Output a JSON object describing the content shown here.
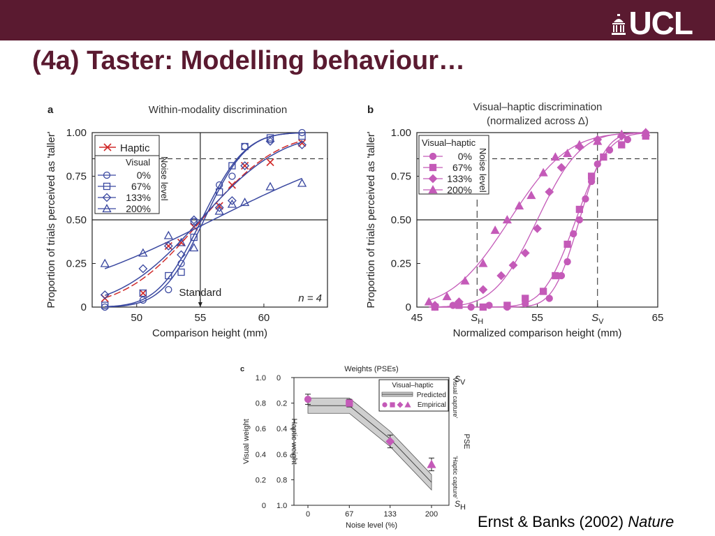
{
  "header": {
    "logo_text": "UCL",
    "title": "(4a) Taster: Modelling behaviour…",
    "bar_color": "#5a1a30"
  },
  "citation": {
    "authors": "Ernst & Banks (2002)",
    "journal": "Nature"
  },
  "chart_data": [
    {
      "panel": "a",
      "type": "line",
      "title": "Within-modality discrimination",
      "xlabel": "Comparison height (mm)",
      "ylabel": "Proportion of trials perceived as 'taller'",
      "xlim": [
        46.5,
        65
      ],
      "ylim": [
        0,
        1
      ],
      "xticks": [
        50,
        55,
        60
      ],
      "yticks": [
        "0",
        "0.25",
        "0.50",
        "0.75",
        "1.00"
      ],
      "annotations": [
        "Standard",
        "n = 4"
      ],
      "standard": 55,
      "legend": {
        "haptic": "Haptic",
        "visual_header": "Visual",
        "noise_label": "Noise level",
        "placement": "top-left"
      },
      "series": [
        {
          "name": "Haptic",
          "marker": "x",
          "color": "#d02a2a",
          "x": [
            47.5,
            50.5,
            52.5,
            53.5,
            54.5,
            56.5,
            57.5,
            58.5,
            60.5,
            63
          ],
          "y": [
            0.05,
            0.08,
            0.35,
            0.37,
            0.46,
            0.58,
            0.7,
            0.81,
            0.83,
            0.94
          ]
        },
        {
          "name": "0%",
          "marker": "circle",
          "color": "#3a48a0",
          "x": [
            47.5,
            50.5,
            52.5,
            53.5,
            54.5,
            56.5,
            57.5,
            58.5,
            60.5,
            63
          ],
          "y": [
            0.0,
            0.04,
            0.1,
            0.25,
            0.49,
            0.7,
            0.75,
            0.92,
            0.96,
            1.0
          ]
        },
        {
          "name": "67%",
          "marker": "square",
          "color": "#3a48a0",
          "x": [
            47.5,
            50.5,
            52.5,
            53.5,
            54.5,
            56.5,
            57.5,
            58.5,
            60.5,
            63
          ],
          "y": [
            0.01,
            0.08,
            0.18,
            0.2,
            0.4,
            0.66,
            0.81,
            0.92,
            0.97,
            0.98
          ]
        },
        {
          "name": "133%",
          "marker": "diamond",
          "color": "#3a48a0",
          "x": [
            47.5,
            50.5,
            52.5,
            53.5,
            54.5,
            56.5,
            57.5,
            58.5,
            60.5,
            63
          ],
          "y": [
            0.07,
            0.22,
            0.35,
            0.3,
            0.5,
            0.57,
            0.61,
            0.81,
            0.95,
            0.93
          ]
        },
        {
          "name": "200%",
          "marker": "triangle",
          "color": "#3a48a0",
          "x": [
            47.5,
            50.5,
            52.5,
            53.5,
            54.5,
            56.5,
            57.5,
            58.5,
            60.5,
            63
          ],
          "y": [
            0.25,
            0.31,
            0.41,
            0.37,
            0.34,
            0.55,
            0.59,
            0.6,
            0.69,
            0.71
          ]
        }
      ]
    },
    {
      "panel": "b",
      "type": "scatter",
      "title": "Visual–haptic discrimination",
      "subtitle": "(normalized across Δ)",
      "xlabel": "Normalized comparison height (mm)",
      "ylabel": "Proportion of trials perceived as 'taller'",
      "xlim": [
        45,
        65
      ],
      "ylim": [
        0,
        1
      ],
      "xticks": [
        "45",
        "S_H",
        "55",
        "S_V",
        "65"
      ],
      "yticks": [
        "0",
        "0.25",
        "0.50",
        "0.75",
        "1.00"
      ],
      "legend": {
        "header": "Visual–haptic",
        "noise_label": "Noise level",
        "placement": "top-left"
      },
      "color": "#c45ab8",
      "series": [
        {
          "name": "0%",
          "marker": "circle",
          "x": [
            46.5,
            48,
            49.5,
            51,
            52.5,
            54,
            56,
            57,
            57.5,
            58,
            58.5,
            59,
            59.5,
            60,
            61,
            62.5,
            64
          ],
          "y": [
            0.0,
            0.01,
            0.0,
            0.01,
            0.0,
            0.02,
            0.05,
            0.18,
            0.26,
            0.42,
            0.5,
            0.62,
            0.72,
            0.82,
            0.9,
            0.96,
            0.99
          ]
        },
        {
          "name": "67%",
          "marker": "square",
          "x": [
            46.5,
            48.5,
            50.5,
            52.5,
            54,
            55.5,
            56.5,
            57.5,
            58.5,
            59.5,
            60.5,
            62,
            64
          ],
          "y": [
            0.0,
            0.01,
            0.0,
            0.01,
            0.05,
            0.09,
            0.18,
            0.36,
            0.56,
            0.75,
            0.86,
            0.93,
            0.98
          ]
        },
        {
          "name": "133%",
          "marker": "diamond",
          "x": [
            46.5,
            48.5,
            50.5,
            52,
            53,
            54,
            55,
            56,
            57,
            58.5,
            60,
            62,
            64
          ],
          "y": [
            0.01,
            0.03,
            0.1,
            0.18,
            0.24,
            0.31,
            0.45,
            0.66,
            0.8,
            0.92,
            0.96,
            0.98,
            1.0
          ]
        },
        {
          "name": "200%",
          "marker": "triangle",
          "x": [
            46,
            47.5,
            49,
            50.5,
            51.5,
            52.5,
            53.5,
            54.5,
            55.5,
            56.5,
            57.5,
            58.5,
            60,
            62,
            64
          ],
          "y": [
            0.03,
            0.06,
            0.15,
            0.25,
            0.44,
            0.5,
            0.58,
            0.64,
            0.77,
            0.86,
            0.88,
            0.93,
            0.95,
            0.99,
            1.0
          ]
        }
      ]
    },
    {
      "panel": "c",
      "type": "line",
      "title": "Weights (PSEs)",
      "xlabel": "Noise level (%)",
      "ylabel_left": "Visual weight",
      "ylabel_inner": "Haptic weight",
      "ylabel_right": "PSE",
      "right_annotations": [
        "'Visual capture'",
        "'Haptic capture'"
      ],
      "right_ticks": [
        "S_V",
        "S_H"
      ],
      "xticks": [
        "0",
        "67",
        "133",
        "200"
      ],
      "yticks_visual": [
        "0",
        "0.2",
        "0.4",
        "0.6",
        "0.8",
        "1.0"
      ],
      "yticks_haptic": [
        "1.0",
        "0.8",
        "0.6",
        "0.4",
        "0.2",
        "0"
      ],
      "legend": {
        "header": "Visual–haptic",
        "predicted": "Predicted",
        "empirical": "Empirical",
        "placement": "top-right"
      },
      "ylim": [
        0,
        1
      ],
      "predicted": {
        "x": [
          0,
          67,
          133,
          200
        ],
        "y": [
          0.78,
          0.78,
          0.52,
          0.18
        ],
        "band": 0.06
      },
      "empirical": {
        "x": [
          0,
          67,
          133,
          200
        ],
        "y": [
          0.83,
          0.8,
          0.5,
          0.32
        ],
        "error": [
          0.04,
          0.03,
          0.05,
          0.05
        ]
      }
    }
  ]
}
